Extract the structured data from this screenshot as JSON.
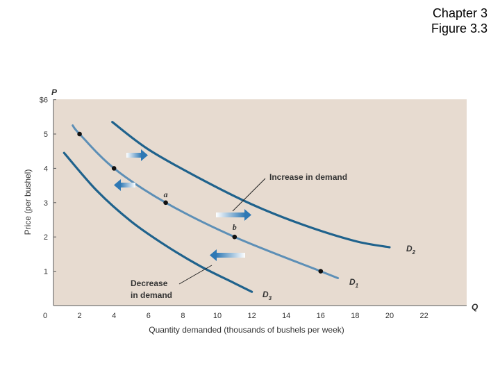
{
  "header": {
    "line1": "Chapter 3",
    "line2": "Figure 3.3"
  },
  "colors": {
    "plot_bg": "#e7dbd0",
    "d2": "#1f628c",
    "d1": "#5d8fb6",
    "d3": "#1f628c",
    "point": "#111111"
  },
  "chart_data": {
    "type": "line",
    "title": "",
    "xlabel": "Quantity demanded (thousands of bushels per week)",
    "ylabel": "Price (per bushel)",
    "y_axis_letter": "P",
    "x_axis_letter": "Q",
    "xlim": [
      0,
      24
    ],
    "ylim": [
      0,
      6
    ],
    "x_ticks": [
      "0",
      "2",
      "4",
      "6",
      "8",
      "10",
      "12",
      "14",
      "16",
      "18",
      "20",
      "22"
    ],
    "y_ticks": [
      {
        "value": 1,
        "label": "1"
      },
      {
        "value": 2,
        "label": "2"
      },
      {
        "value": 3,
        "label": "3"
      },
      {
        "value": 4,
        "label": "4"
      },
      {
        "value": 5,
        "label": "5"
      },
      {
        "value": 6,
        "label": "$6"
      }
    ],
    "series": [
      {
        "name": "D1",
        "label_main": "D",
        "label_sub": "1",
        "x": [
          1.6,
          2,
          4,
          7,
          11,
          16,
          17
        ],
        "y": [
          5.25,
          5,
          4,
          3,
          2,
          1,
          0.8
        ]
      },
      {
        "name": "D2",
        "label_main": "D",
        "label_sub": "2",
        "x": [
          3.9,
          6,
          9,
          12,
          15,
          18,
          20
        ],
        "y": [
          5.35,
          4.55,
          3.7,
          2.95,
          2.35,
          1.88,
          1.7
        ]
      },
      {
        "name": "D3",
        "label_main": "D",
        "label_sub": "3",
        "x": [
          1.1,
          3,
          5,
          7,
          9,
          11,
          12
        ],
        "y": [
          4.45,
          3.35,
          2.45,
          1.75,
          1.15,
          0.65,
          0.4
        ]
      }
    ],
    "points": [
      {
        "x": 2,
        "y": 5,
        "label": ""
      },
      {
        "x": 4,
        "y": 4,
        "label": ""
      },
      {
        "x": 7,
        "y": 3,
        "label": "a"
      },
      {
        "x": 11,
        "y": 2,
        "label": "b"
      },
      {
        "x": 16,
        "y": 1,
        "label": ""
      }
    ],
    "annotations": {
      "increase": "Increase in demand",
      "decrease_line1": "Decrease",
      "decrease_line2": "in demand"
    }
  }
}
